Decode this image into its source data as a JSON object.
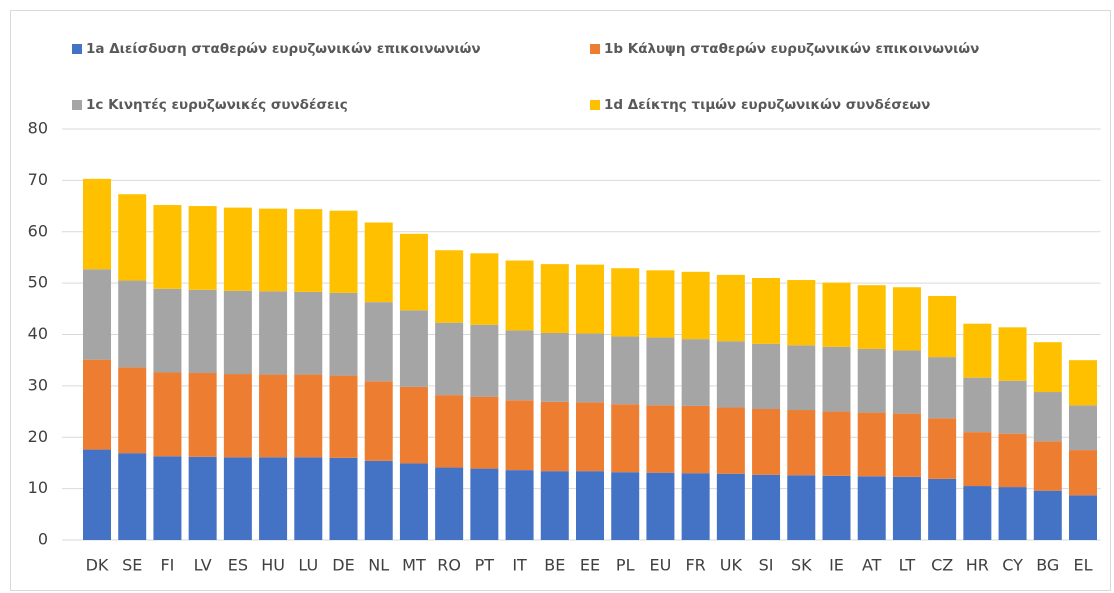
{
  "chart_data": {
    "type": "stacked-bar",
    "legend": "top",
    "grid": true,
    "categories": [
      "DK",
      "SE",
      "FI",
      "LV",
      "ES",
      "HU",
      "LU",
      "DE",
      "NL",
      "MT",
      "RO",
      "PT",
      "IT",
      "BE",
      "EE",
      "PL",
      "EU",
      "FR",
      "UK",
      "SI",
      "SK",
      "IE",
      "AT",
      "LT",
      "CZ",
      "HR",
      "CY",
      "BG",
      "EL"
    ],
    "series": [
      {
        "name": "1a Διείσδυση σταθερών ευρυζωνικών επικοινωνιών",
        "color": "#4472c4",
        "values": [
          17.6,
          16.9,
          16.3,
          16.2,
          16.1,
          16.1,
          16.1,
          16.0,
          15.4,
          14.9,
          14.1,
          13.9,
          13.6,
          13.4,
          13.4,
          13.2,
          13.1,
          13.0,
          12.9,
          12.7,
          12.6,
          12.5,
          12.4,
          12.3,
          11.9,
          10.5,
          10.3,
          9.6,
          8.7
        ]
      },
      {
        "name": "1b Κάλυψη σταθερών ευρυζωνικών επικοινωνιών",
        "color": "#ed7d31",
        "values": [
          17.5,
          16.7,
          16.3,
          16.3,
          16.2,
          16.1,
          16.1,
          16.0,
          15.5,
          14.9,
          14.1,
          14.0,
          13.6,
          13.5,
          13.4,
          13.2,
          13.1,
          13.1,
          12.9,
          12.8,
          12.7,
          12.5,
          12.4,
          12.3,
          11.8,
          10.5,
          10.4,
          9.6,
          8.8
        ]
      },
      {
        "name": "1c Κινητές ευρυζωνικές συνδέσεις",
        "color": "#a5a5a5",
        "values": [
          17.6,
          16.9,
          16.3,
          16.2,
          16.2,
          16.2,
          16.1,
          16.1,
          15.4,
          14.9,
          14.1,
          14.0,
          13.6,
          13.4,
          13.4,
          13.2,
          13.2,
          13.0,
          12.9,
          12.7,
          12.6,
          12.6,
          12.4,
          12.3,
          11.9,
          10.6,
          10.3,
          9.6,
          8.7
        ]
      },
      {
        "name": "1d Δείκτης τιμών ευρυζωνικών συνδέσεων",
        "color": "#ffc000",
        "values": [
          17.6,
          16.8,
          16.3,
          16.3,
          16.2,
          16.1,
          16.1,
          16.0,
          15.5,
          14.9,
          14.1,
          13.9,
          13.6,
          13.4,
          13.4,
          13.3,
          13.1,
          13.1,
          12.9,
          12.8,
          12.7,
          12.5,
          12.4,
          12.3,
          11.9,
          10.5,
          10.4,
          9.7,
          8.8
        ]
      }
    ],
    "ylim": [
      0,
      80
    ],
    "yticks": [
      0,
      10,
      20,
      30,
      40,
      50,
      60,
      70,
      80
    ]
  }
}
